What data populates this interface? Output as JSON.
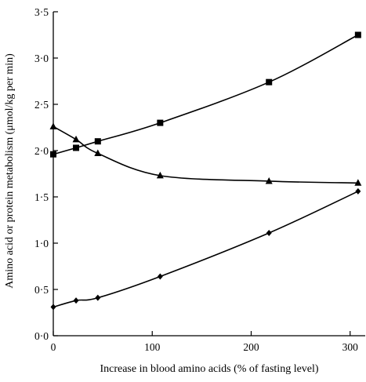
{
  "chart_data": {
    "type": "line",
    "title": "",
    "xlabel": "Increase in blood amino acids (% of fasting level)",
    "ylabel": "Amino acid or protein metabolism (μmol/kg per min)",
    "xlim": [
      0,
      320
    ],
    "ylim": [
      0,
      3.5
    ],
    "x_ticks": [
      0,
      100,
      200,
      300
    ],
    "x_tick_labels": [
      "0",
      "100",
      "200",
      "300"
    ],
    "y_ticks": [
      0,
      0.5,
      1.0,
      1.5,
      2.0,
      2.5,
      3.0,
      3.5
    ],
    "y_tick_labels": [
      "0·0",
      "0·5",
      "1·0",
      "1·5",
      "2·0",
      "2·5",
      "3·0",
      "3·5"
    ],
    "grid": false,
    "legend": "none",
    "series": [
      {
        "marker": "square",
        "color": "#000000",
        "x": [
          0,
          23,
          45,
          108,
          218,
          308
        ],
        "y": [
          1.96,
          2.03,
          2.1,
          2.3,
          2.74,
          3.25
        ]
      },
      {
        "marker": "triangle",
        "color": "#000000",
        "x": [
          0,
          23,
          45,
          108,
          218,
          308
        ],
        "y": [
          2.26,
          2.12,
          1.97,
          1.73,
          1.67,
          1.65
        ]
      },
      {
        "marker": "diamond",
        "color": "#000000",
        "x": [
          0,
          23,
          45,
          108,
          218,
          308
        ],
        "y": [
          0.31,
          0.38,
          0.41,
          0.64,
          1.11,
          1.56
        ]
      }
    ]
  }
}
